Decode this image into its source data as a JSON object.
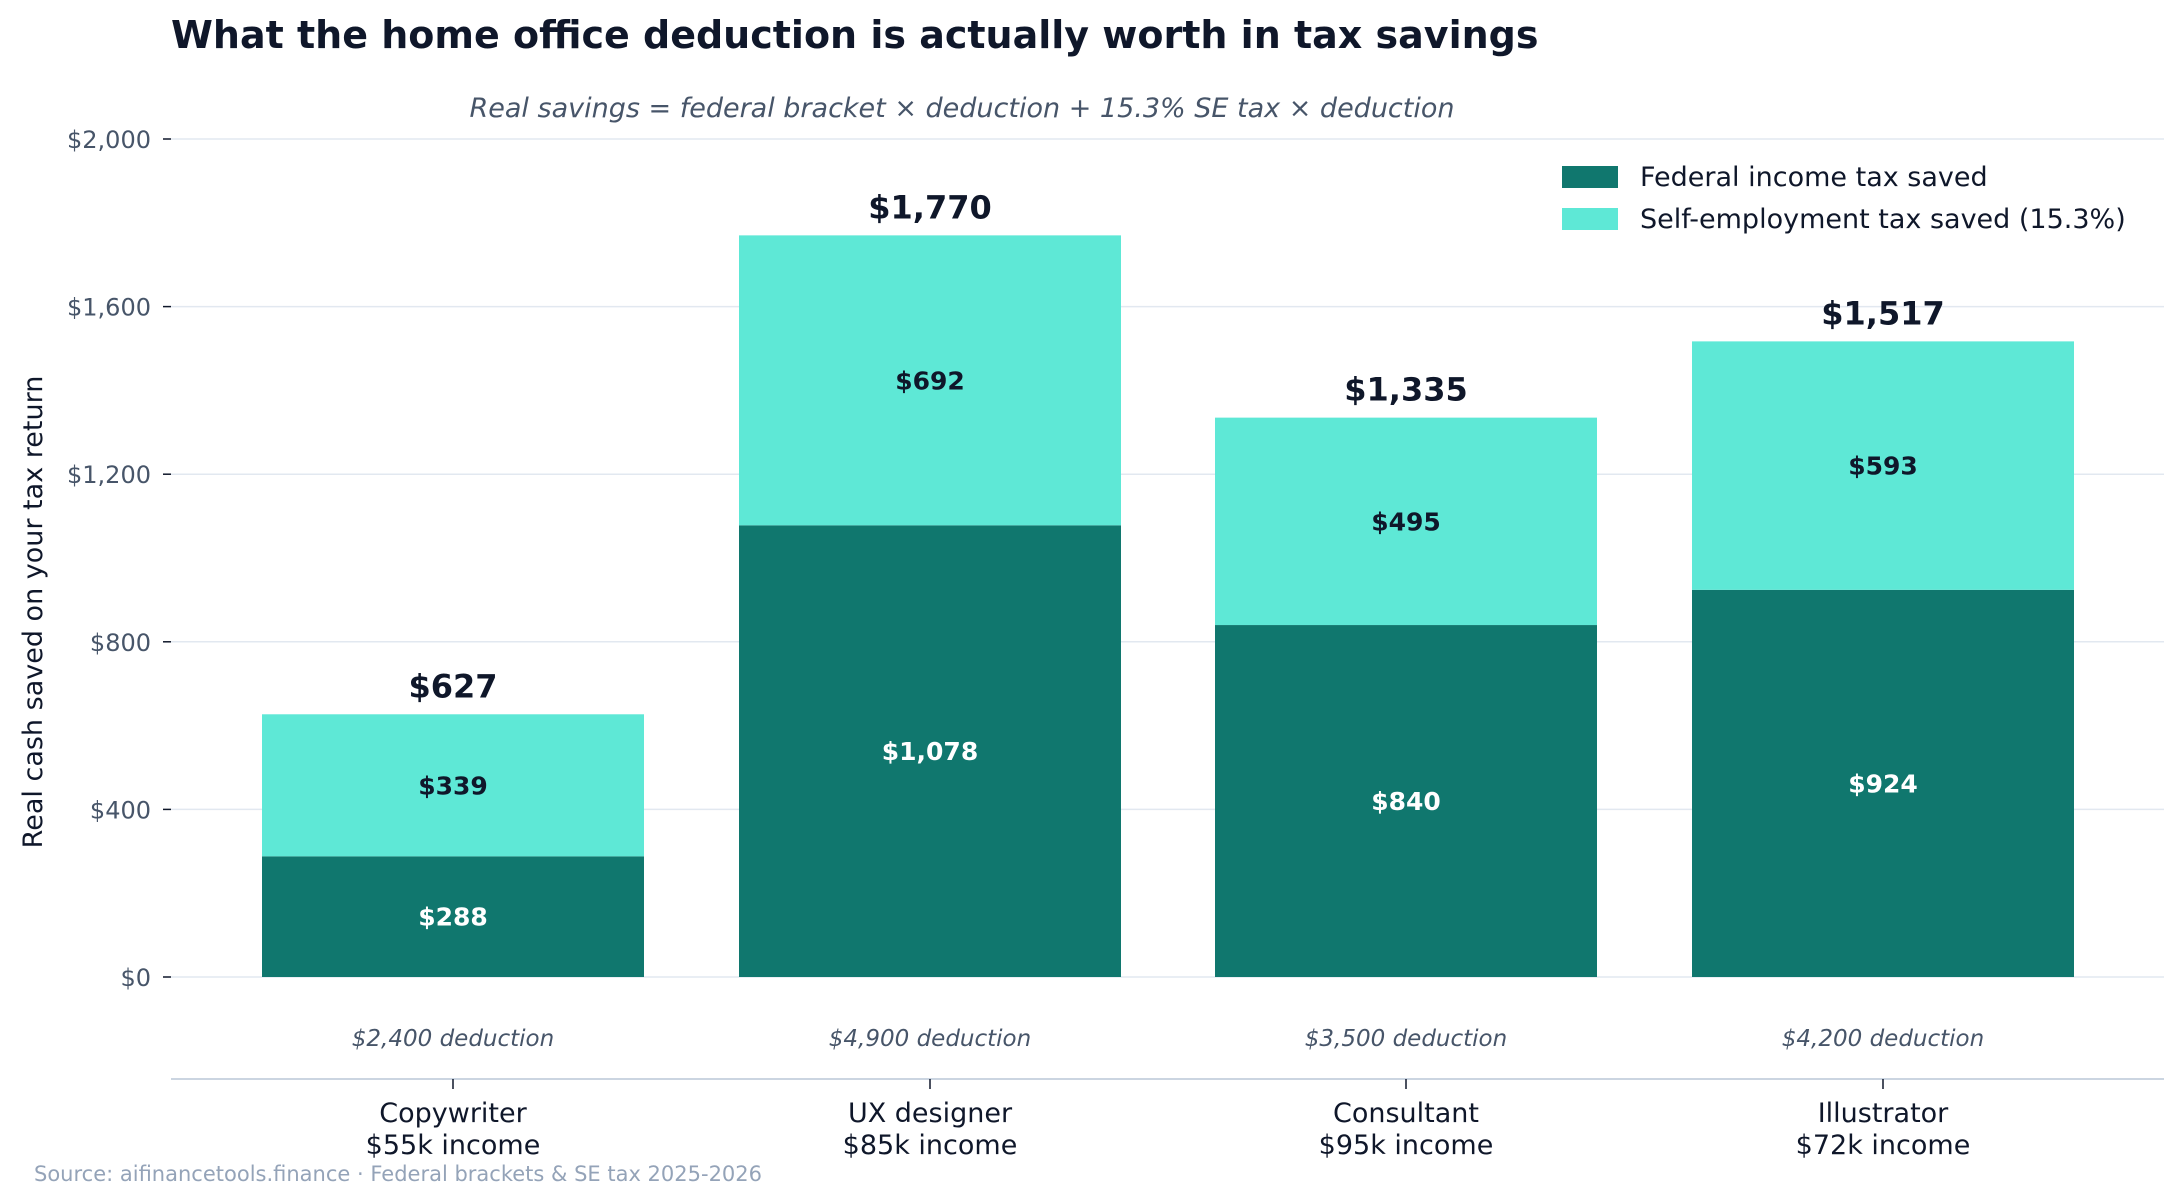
{
  "chart_data": {
    "type": "bar",
    "stacked": true,
    "title": "What the home office deduction is actually worth in tax savings",
    "subtitle": "Real savings = federal bracket × deduction + 15.3% SE tax × deduction",
    "ylabel": "Real cash saved on your tax return",
    "xlabel": "",
    "ylim": [
      0,
      2000
    ],
    "yticks": [
      0,
      400,
      800,
      1200,
      1600,
      2000
    ],
    "ytick_labels": [
      "$0",
      "$400",
      "$800",
      "$1,200",
      "$1,600",
      "$2,000"
    ],
    "grid": "horizontal",
    "legend_position": "top-right",
    "categories": [
      {
        "name": "Copywriter",
        "income": "$55k income",
        "deduction": "$2,400 deduction",
        "total_label": "$627"
      },
      {
        "name": "UX designer",
        "income": "$85k income",
        "deduction": "$4,900 deduction",
        "total_label": "$1,770"
      },
      {
        "name": "Consultant",
        "income": "$95k income",
        "deduction": "$3,500 deduction",
        "total_label": "$1,335"
      },
      {
        "name": "Illustrator",
        "income": "$72k income",
        "deduction": "$4,200 deduction",
        "total_label": "$1,517"
      }
    ],
    "series": [
      {
        "name": "Federal income tax saved",
        "color": "#10776e",
        "label_color": "#ffffff",
        "values": [
          288,
          1078,
          840,
          924
        ],
        "labels": [
          "$288",
          "$1,078",
          "$840",
          "$924"
        ]
      },
      {
        "name": "Self-employment tax saved (15.3%)",
        "color": "#5ee8d6",
        "label_color": "#0f172a",
        "values": [
          339,
          692,
          495,
          593
        ],
        "labels": [
          "$339",
          "$692",
          "$495",
          "$593"
        ]
      }
    ],
    "totals": [
      627,
      1770,
      1335,
      1517
    ],
    "source": "Source: aifinancetools.finance · Federal brackets & SE tax 2025-2026"
  }
}
